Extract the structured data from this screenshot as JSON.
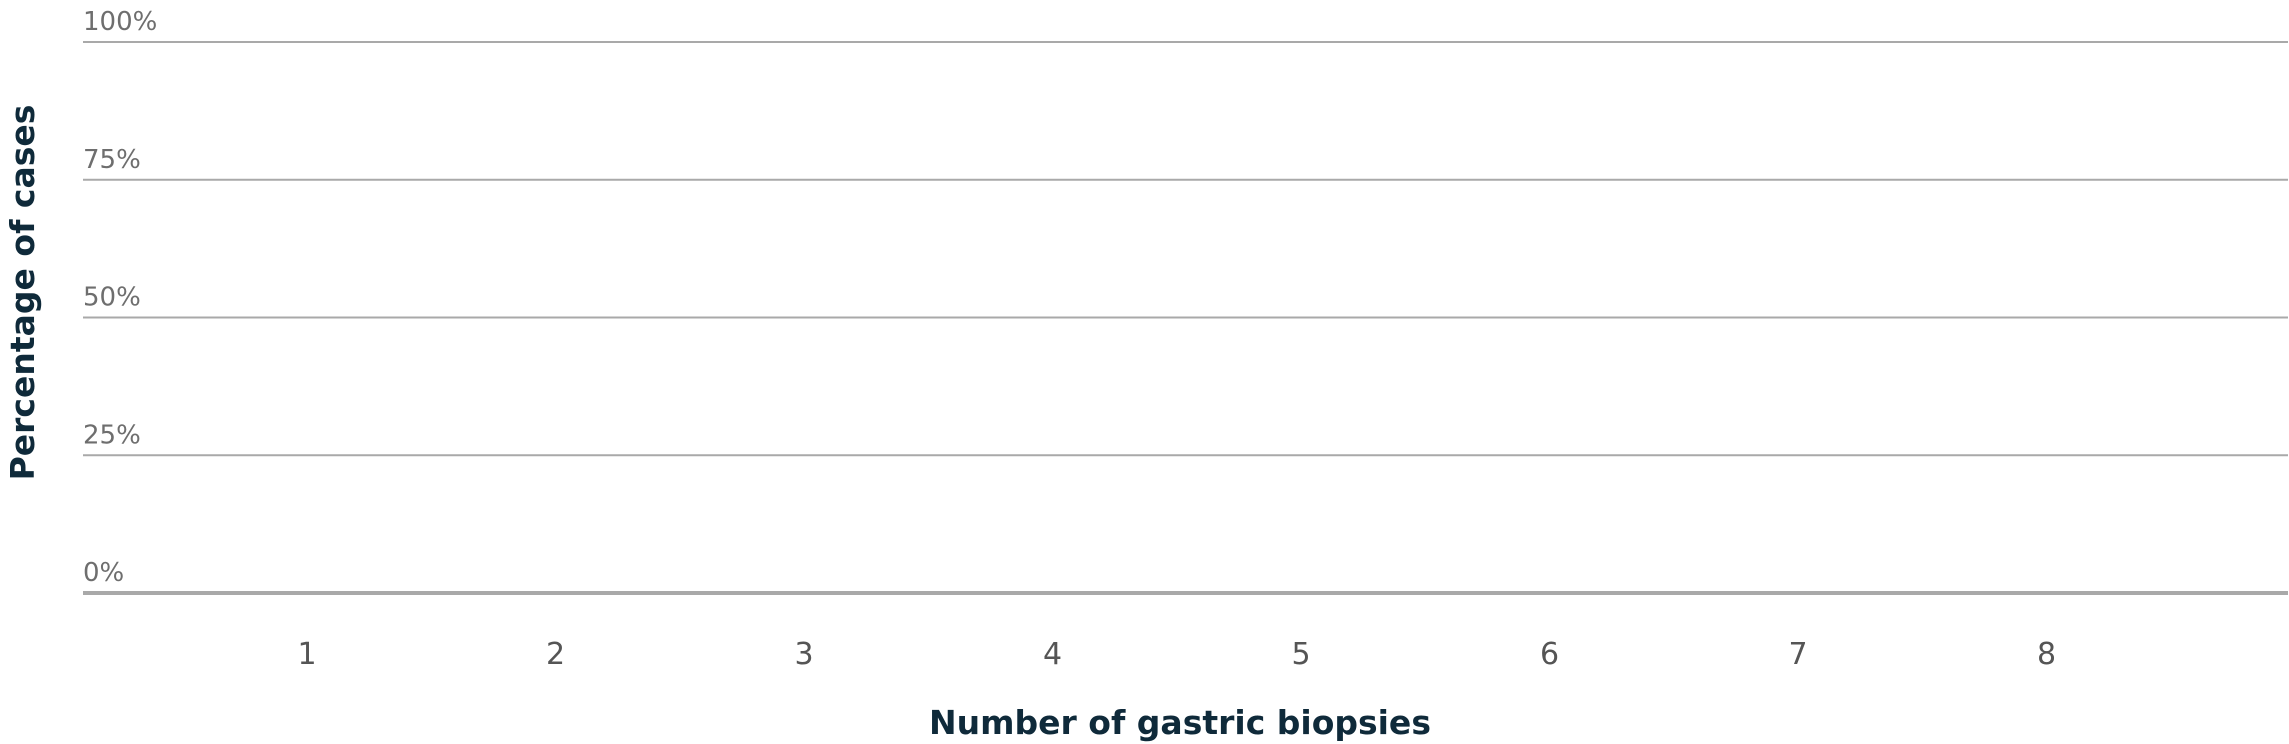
{
  "chart_data": {
    "type": "bar",
    "categories": [
      "1",
      "2",
      "3",
      "4",
      "5",
      "6",
      "7",
      "8"
    ],
    "series": [],
    "y_ticks": [
      "100%",
      "75%",
      "50%",
      "25%",
      "0%"
    ],
    "y_tick_values": [
      100,
      75,
      50,
      25,
      0
    ],
    "ylim": [
      0,
      100
    ],
    "xlabel": "Number of gastric biopsies",
    "ylabel": "Percentage of cases",
    "grid": true
  }
}
